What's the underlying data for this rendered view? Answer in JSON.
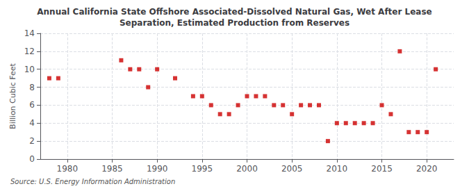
{
  "chart_data": {
    "type": "scatter",
    "title": "Annual California State Offshore Associated-Dissolved Natural Gas, Wet After Lease\nSeparation, Estimated Production from Reserves",
    "ylabel": "Billion Cubic Feet",
    "source": "Source: U.S. Energy Information Administration",
    "x": [
      1978,
      1979,
      1986,
      1987,
      1988,
      1989,
      1990,
      1992,
      1994,
      1995,
      1996,
      1997,
      1998,
      1999,
      2000,
      2001,
      2002,
      2003,
      2004,
      2005,
      2006,
      2007,
      2008,
      2009,
      2010,
      2011,
      2012,
      2013,
      2014,
      2015,
      2016,
      2017,
      2018,
      2019,
      2020,
      2021
    ],
    "values": [
      9,
      9,
      11,
      10,
      10,
      8,
      10,
      9,
      7,
      7,
      6,
      5,
      5,
      6,
      7,
      7,
      7,
      6,
      6,
      5,
      6,
      6,
      6,
      2,
      4,
      4,
      4,
      4,
      4,
      6,
      5,
      12,
      3,
      3,
      3,
      10
    ],
    "color": "#cc0000",
    "marker": "square",
    "xlim": [
      1977,
      2023
    ],
    "xticks": [
      1980,
      1985,
      1990,
      1995,
      2000,
      2005,
      2010,
      2015,
      2020
    ],
    "ylim": [
      0,
      14
    ],
    "yticks": [
      0,
      2,
      4,
      6,
      8,
      10,
      12,
      14
    ],
    "grid": true
  }
}
